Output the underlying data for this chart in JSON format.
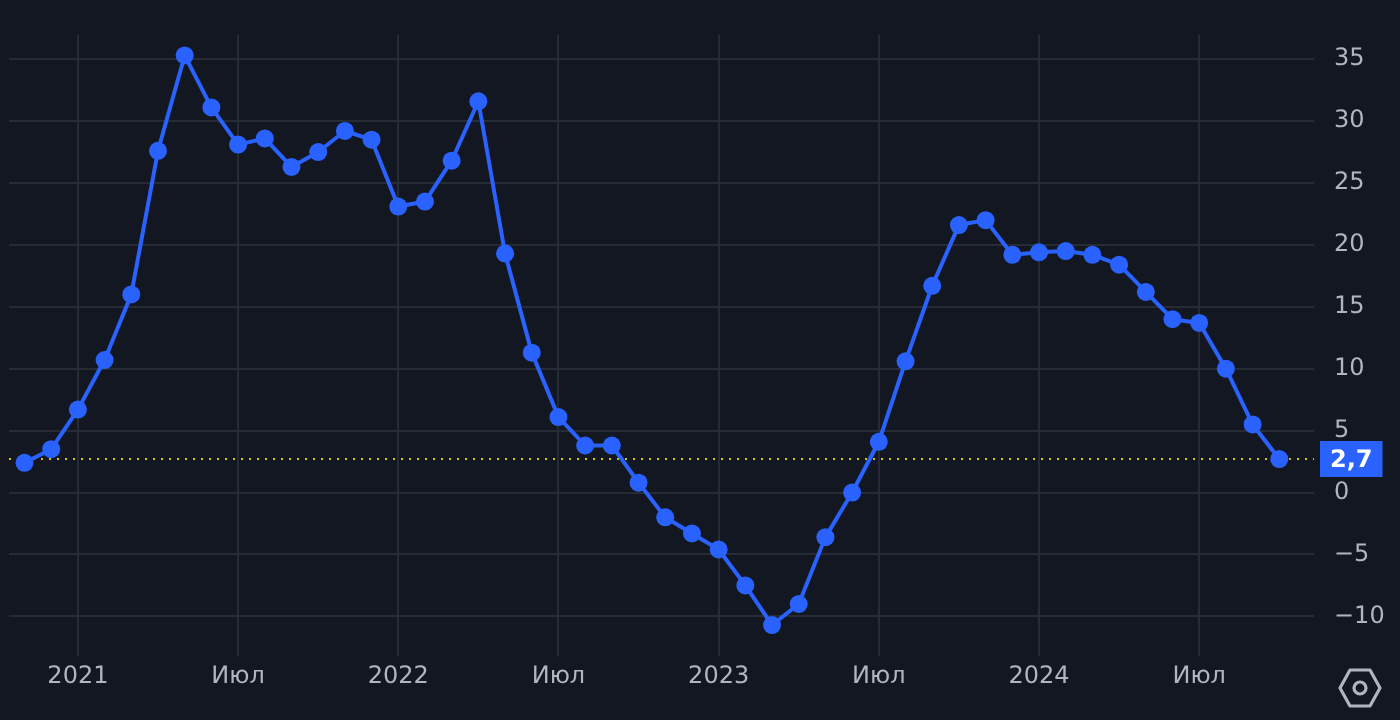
{
  "chart_data": {
    "type": "line",
    "x": [
      "2020-11",
      "2020-12",
      "2021-01",
      "2021-02",
      "2021-03",
      "2021-04",
      "2021-05",
      "2021-06",
      "2021-07",
      "2021-08",
      "2021-09",
      "2021-10",
      "2021-11",
      "2021-12",
      "2022-01",
      "2022-02",
      "2022-03",
      "2022-04",
      "2022-05",
      "2022-06",
      "2022-07",
      "2022-08",
      "2022-09",
      "2022-10",
      "2022-11",
      "2022-12",
      "2023-01",
      "2023-02",
      "2023-03",
      "2023-04",
      "2023-05",
      "2023-06",
      "2023-07",
      "2023-08",
      "2023-09",
      "2023-10",
      "2023-11",
      "2023-12",
      "2024-01",
      "2024-02",
      "2024-03",
      "2024-04",
      "2024-05",
      "2024-06",
      "2024-07",
      "2024-08",
      "2024-09",
      "2024-10"
    ],
    "series": [
      {
        "color": "#2962ff",
        "values": [
          2.4,
          3.5,
          6.7,
          10.7,
          16.0,
          27.6,
          35.3,
          31.1,
          28.1,
          28.6,
          26.3,
          27.5,
          29.2,
          28.5,
          23.1,
          23.5,
          26.8,
          31.6,
          19.3,
          11.3,
          6.1,
          3.8,
          3.8,
          0.8,
          -2.0,
          -3.3,
          -4.6,
          -7.5,
          -10.7,
          -9.0,
          -3.6,
          0.0,
          4.1,
          10.6,
          16.7,
          21.6,
          22.0,
          19.2,
          19.4,
          19.5,
          19.2,
          18.4,
          16.2,
          14.0,
          13.7,
          10.0,
          5.5,
          2.7
        ]
      }
    ],
    "xlim": [
      "2020-10-14",
      "2024-11-10"
    ],
    "xticks": [
      {
        "value": "2021-01",
        "label": "2021"
      },
      {
        "value": "2021-07",
        "label": "Июл"
      },
      {
        "value": "2022-01",
        "label": "2022"
      },
      {
        "value": "2022-07",
        "label": "Июл"
      },
      {
        "value": "2023-01",
        "label": "2023"
      },
      {
        "value": "2023-07",
        "label": "Июл"
      },
      {
        "value": "2024-01",
        "label": "2024"
      },
      {
        "value": "2024-07",
        "label": "Июл"
      }
    ],
    "ylim": [
      -13.2,
      37
    ],
    "yticks": [
      {
        "value": -10,
        "label": "−10"
      },
      {
        "value": -5,
        "label": "−5"
      },
      0,
      5,
      10,
      15,
      20,
      25,
      30,
      35
    ],
    "ref_lines": [
      {
        "axis": "y",
        "value": 2.7,
        "color": "#d4c21a",
        "line_style": "dotted"
      }
    ],
    "annotations": [
      {
        "text": "2,7",
        "x": "2024-10",
        "y": 2.7
      }
    ],
    "grid": true,
    "legend": false,
    "marker": "circle",
    "line_style": "solid"
  }
}
